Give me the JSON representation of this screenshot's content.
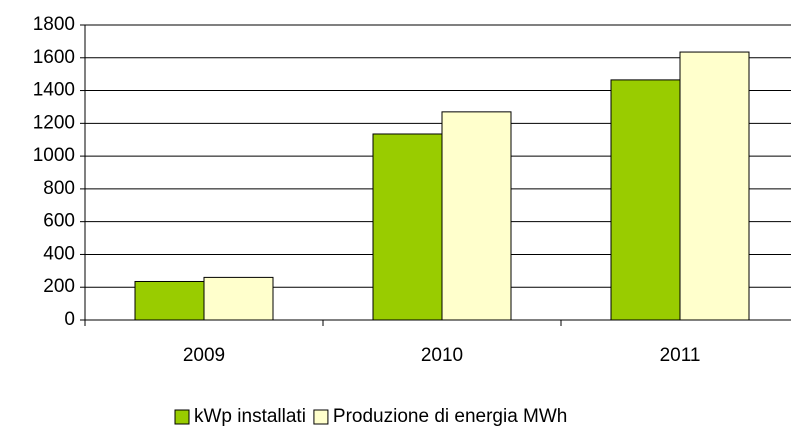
{
  "chart_data": {
    "type": "bar",
    "categories": [
      "2009",
      "2010",
      "2011"
    ],
    "series": [
      {
        "name": "kWp installati",
        "color": "#99cc00",
        "values": [
          235,
          1135,
          1465
        ]
      },
      {
        "name": "Produzione di energia MWh",
        "color": "#ffffcc",
        "values": [
          260,
          1270,
          1635
        ]
      }
    ],
    "ylim": [
      0,
      1800
    ],
    "yticks": [
      0,
      200,
      400,
      600,
      800,
      1000,
      1200,
      1400,
      1600,
      1800
    ],
    "grid": true,
    "legend": "bottom"
  }
}
